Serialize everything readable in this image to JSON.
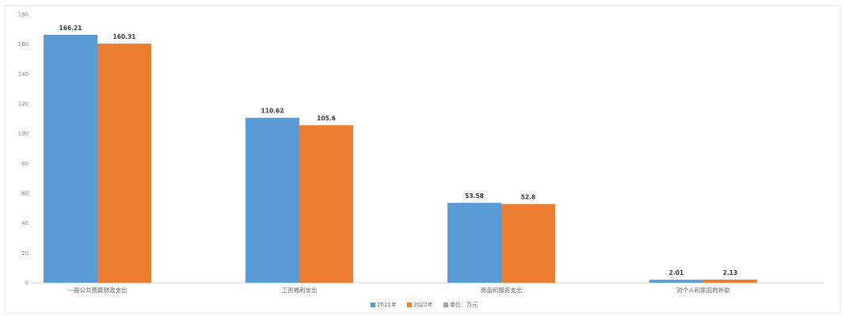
{
  "chart_data": {
    "type": "bar",
    "categories": [
      "一般公共预算财政支出",
      "工资福利支出",
      "商品和服务支出",
      "对个人和家庭的补助"
    ],
    "series": [
      {
        "name": "2021年",
        "values": [
          166.21,
          110.62,
          53.58,
          2.01
        ],
        "color": "#5b9bd5"
      },
      {
        "name": "2022年",
        "values": [
          160.31,
          105.6,
          52.8,
          2.13
        ],
        "color": "#ed7d31"
      }
    ],
    "unit_legend": "单位：万元",
    "data_labels": [
      [
        "166.21",
        "160.31"
      ],
      [
        "110.62",
        "105.6"
      ],
      [
        "53.58",
        "52.8"
      ],
      [
        "2.01",
        "2.13"
      ]
    ],
    "ylim": [
      0,
      180
    ],
    "yticks": [
      "0",
      "20",
      "40",
      "60",
      "80",
      "100",
      "120",
      "140",
      "160",
      "180"
    ],
    "grid": false,
    "legend_position": "bottom"
  }
}
